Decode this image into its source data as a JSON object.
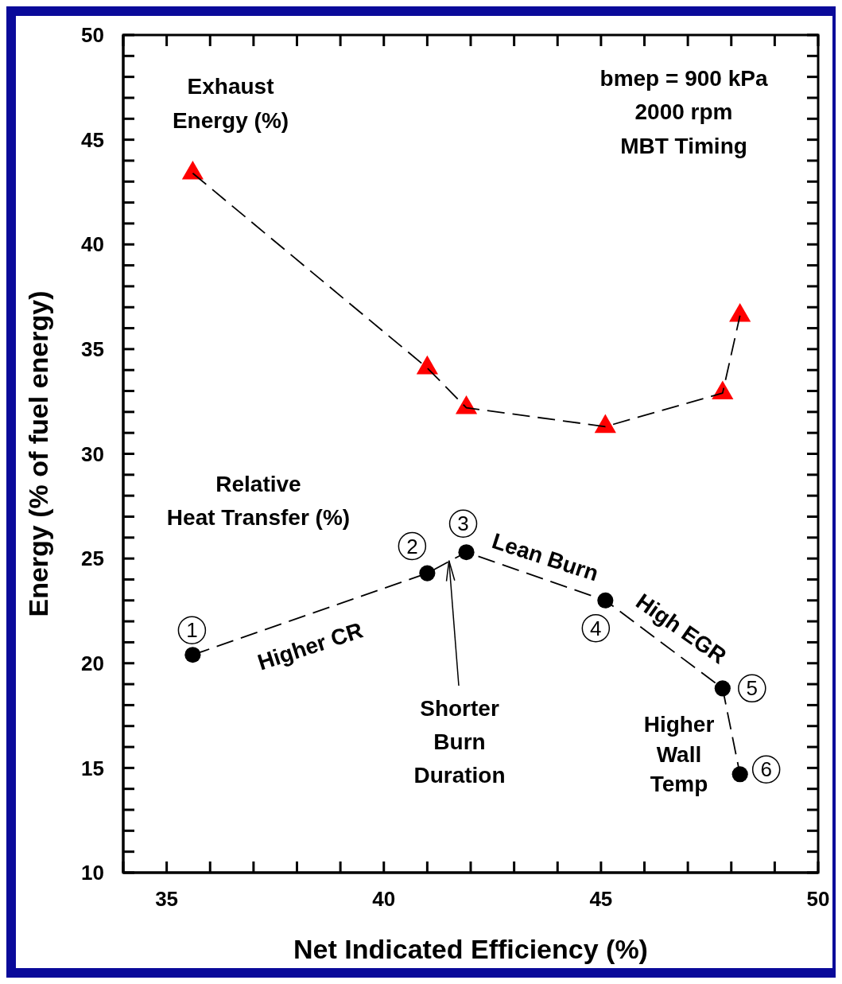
{
  "chart_data": {
    "type": "line",
    "xlabel": "Net Indicated Efficiency (%)",
    "ylabel": "Energy (% of fuel energy)",
    "xlim": [
      34,
      50
    ],
    "ylim": [
      10,
      50
    ],
    "xticks": [
      {
        "value": 34,
        "label": null
      },
      35,
      {
        "value": 36,
        "label": null
      },
      {
        "value": 37,
        "label": null
      },
      {
        "value": 38,
        "label": null
      },
      {
        "value": 39,
        "label": null
      },
      40,
      {
        "value": 41,
        "label": null
      },
      {
        "value": 42,
        "label": null
      },
      {
        "value": 43,
        "label": null
      },
      {
        "value": 44,
        "label": null
      },
      45,
      {
        "value": 46,
        "label": null
      },
      {
        "value": 47,
        "label": null
      },
      {
        "value": 48,
        "label": null
      },
      {
        "value": 49,
        "label": null
      },
      50
    ],
    "yticks": [
      10,
      {
        "value": 11,
        "label": null
      },
      {
        "value": 12,
        "label": null
      },
      {
        "value": 13,
        "label": null
      },
      {
        "value": 14,
        "label": null
      },
      15,
      {
        "value": 16,
        "label": null
      },
      {
        "value": 17,
        "label": null
      },
      {
        "value": 18,
        "label": null
      },
      {
        "value": 19,
        "label": null
      },
      20,
      {
        "value": 21,
        "label": null
      },
      {
        "value": 22,
        "label": null
      },
      {
        "value": 23,
        "label": null
      },
      {
        "value": 24,
        "label": null
      },
      25,
      {
        "value": 26,
        "label": null
      },
      {
        "value": 27,
        "label": null
      },
      {
        "value": 28,
        "label": null
      },
      {
        "value": 29,
        "label": null
      },
      30,
      {
        "value": 31,
        "label": null
      },
      {
        "value": 32,
        "label": null
      },
      {
        "value": 33,
        "label": null
      },
      {
        "value": 34,
        "label": null
      },
      35,
      {
        "value": 36,
        "label": null
      },
      {
        "value": 37,
        "label": null
      },
      {
        "value": 38,
        "label": null
      },
      {
        "value": 39,
        "label": null
      },
      40,
      {
        "value": 41,
        "label": null
      },
      {
        "value": 42,
        "label": null
      },
      {
        "value": 43,
        "label": null
      },
      {
        "value": 44,
        "label": null
      },
      45,
      {
        "value": 46,
        "label": null
      },
      {
        "value": 47,
        "label": null
      },
      {
        "value": 48,
        "label": null
      },
      {
        "value": 49,
        "label": null
      },
      50
    ],
    "grid": false,
    "series": [
      {
        "type": "scatter",
        "color": "#ff0000",
        "marker": "triangle",
        "x": [
          35.6,
          41.0,
          41.9,
          45.1,
          47.8,
          48.2
        ],
        "values": [
          43.4,
          34.1,
          32.2,
          31.3,
          32.9,
          36.6
        ]
      },
      {
        "color": "#000000",
        "marker": "none",
        "line_style": "dashed",
        "x": [
          35.6,
          41.0,
          41.9,
          45.1,
          47.8,
          48.2
        ],
        "values": [
          43.4,
          34.1,
          32.2,
          31.3,
          32.9,
          36.6
        ]
      },
      {
        "color": "#000000",
        "marker": "circle",
        "line_style": "dashed",
        "x": [
          35.6,
          41.0,
          41.9,
          45.1,
          47.8,
          48.2
        ],
        "values": [
          20.4,
          24.3,
          25.3,
          23.0,
          18.8,
          14.7
        ]
      }
    ],
    "annotations": [
      "Exhaust\nEnergy (%)",
      "bmep = 900 kPa\n2000 rpm\nMBT Timing",
      "Relative\nHeat Transfer (%)",
      "Higher CR",
      "Lean Burn",
      "High EGR",
      {
        "text": "Shorter\nBurn\nDuration",
        "x": 41.5,
        "y": 24.9
      },
      "Higher\nWall\nTemp",
      {
        "text": "1",
        "x": 35.6,
        "y": 20.4
      },
      {
        "text": "2",
        "x": 41.0,
        "y": 24.3
      },
      {
        "text": "3",
        "x": 41.9,
        "y": 25.3
      },
      {
        "text": "4",
        "x": 45.1,
        "y": 23.0
      },
      {
        "text": "5",
        "x": 47.8,
        "y": 18.8
      },
      {
        "text": "6",
        "x": 48.2,
        "y": 14.7
      }
    ]
  }
}
